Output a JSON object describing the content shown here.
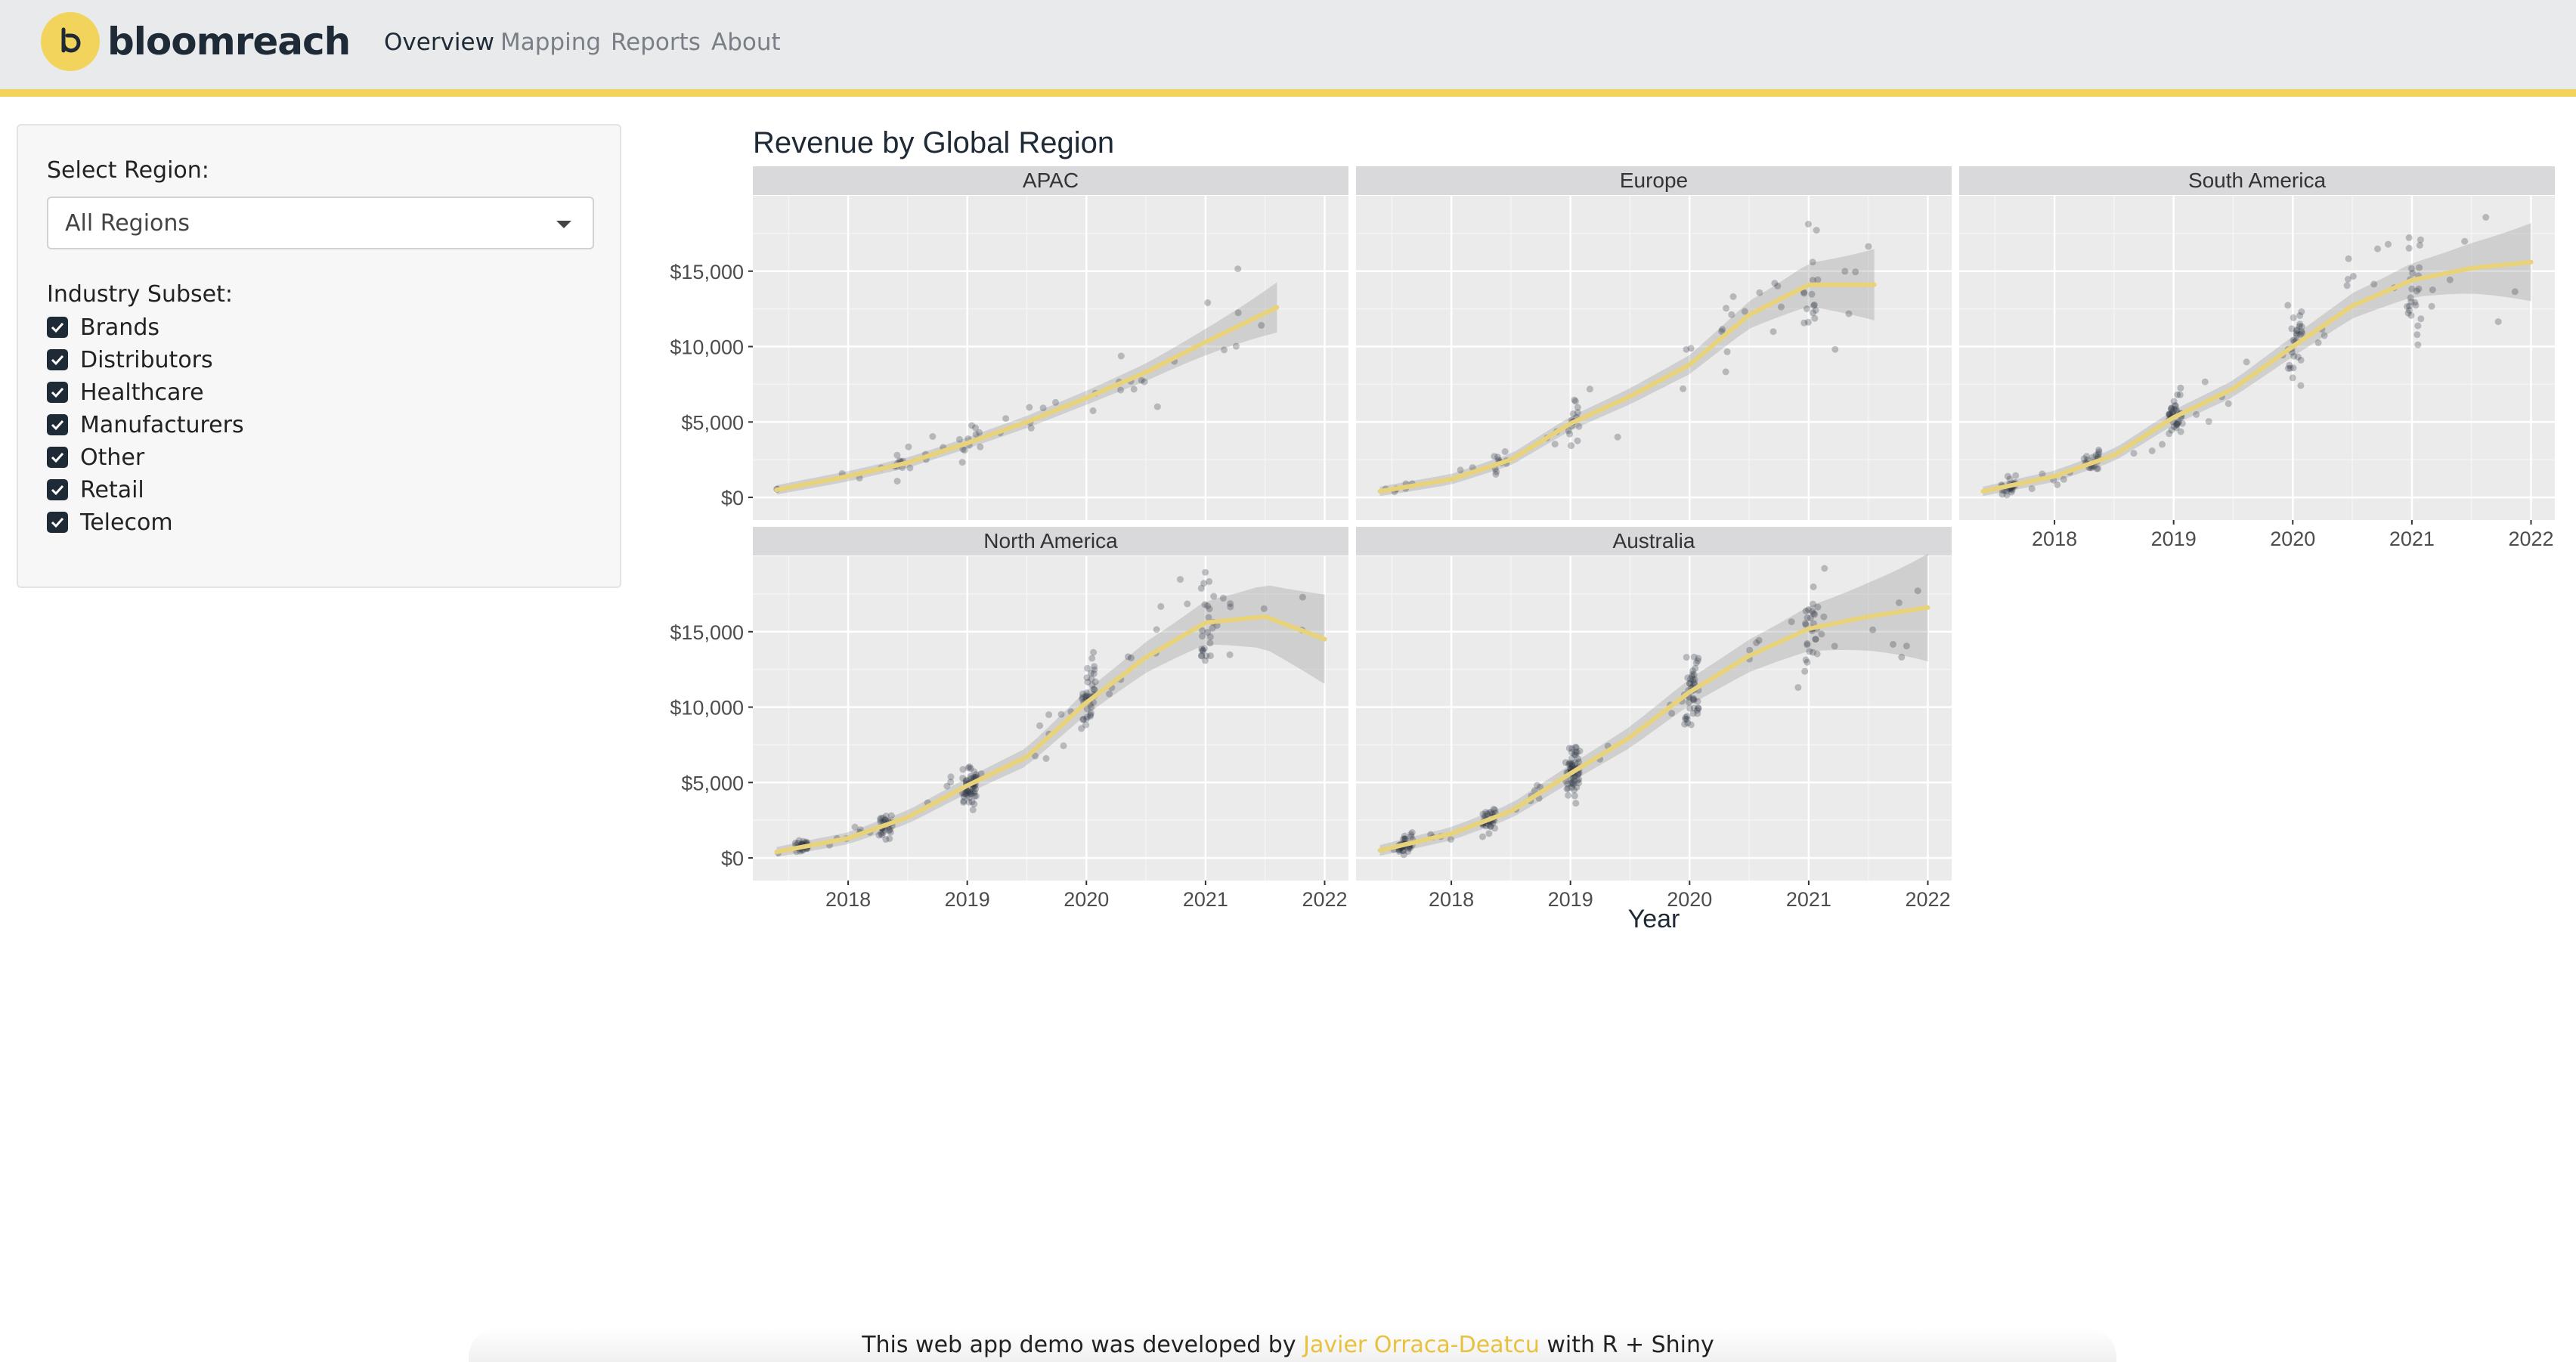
{
  "brand": {
    "name": "bloomreach",
    "accent": "#f2d45c",
    "logo_icon": "bloomreach-b-icon"
  },
  "nav": {
    "items": [
      {
        "label": "Overview",
        "active": true
      },
      {
        "label": "Mapping",
        "active": false
      },
      {
        "label": "Reports",
        "active": false
      },
      {
        "label": "About",
        "active": false
      }
    ]
  },
  "sidebar": {
    "region_label": "Select Region:",
    "region_value": "All Regions",
    "industry_label": "Industry Subset:",
    "industries": [
      {
        "label": "Brands",
        "checked": true
      },
      {
        "label": "Distributors",
        "checked": true
      },
      {
        "label": "Healthcare",
        "checked": true
      },
      {
        "label": "Manufacturers",
        "checked": true
      },
      {
        "label": "Other",
        "checked": true
      },
      {
        "label": "Retail",
        "checked": true
      },
      {
        "label": "Telecom",
        "checked": true
      }
    ]
  },
  "chart_data": {
    "type": "scatter",
    "title": "Revenue by Global Region",
    "xlabel": "Year",
    "ylabel": "",
    "xlim": [
      2017.2,
      2022.2
    ],
    "ylim": [
      -1500,
      20000
    ],
    "xticks": [
      "2018",
      "2019",
      "2020",
      "2021",
      "2022"
    ],
    "yticks": [
      "$0",
      "$5,000",
      "$10,000",
      "$15,000"
    ],
    "grid": true,
    "smooth_color": "#e8d37a",
    "point_color": "#2b3440",
    "panels": [
      {
        "name": "APAC",
        "trend": {
          "x": [
            2017.4,
            2018,
            2018.5,
            2019,
            2019.5,
            2020,
            2020.5,
            2021,
            2021.6
          ],
          "y": [
            500,
            1400,
            2300,
            3600,
            5000,
            6600,
            8300,
            10300,
            12600
          ]
        },
        "band": 0.09,
        "dense_bins": [
          2018.45,
          2019.0
        ],
        "counts": [
          8,
          7
        ]
      },
      {
        "name": "Europe",
        "trend": {
          "x": [
            2017.4,
            2018,
            2018.5,
            2019,
            2019.5,
            2020,
            2020.5,
            2021,
            2021.55
          ],
          "y": [
            400,
            1200,
            2500,
            4900,
            6700,
            8800,
            12100,
            14100,
            14100
          ]
        },
        "band": 0.12,
        "dense_bins": [
          2018.4,
          2019.0,
          2021.0
        ],
        "counts": [
          10,
          14,
          12
        ]
      },
      {
        "name": "South America",
        "trend": {
          "x": [
            2017.4,
            2018,
            2018.5,
            2019,
            2019.5,
            2020,
            2020.5,
            2021,
            2021.5,
            2022
          ],
          "y": [
            400,
            1400,
            2800,
            5300,
            7200,
            10000,
            12700,
            14400,
            15200,
            15600
          ]
        },
        "band": 0.12,
        "dense_bins": [
          2017.6,
          2018.3,
          2019.0,
          2020.0,
          2021.0
        ],
        "counts": [
          25,
          20,
          35,
          30,
          25
        ]
      },
      {
        "name": "North America",
        "trend": {
          "x": [
            2017.4,
            2018,
            2018.5,
            2019,
            2019.5,
            2020,
            2020.5,
            2021,
            2021.5,
            2022
          ],
          "y": [
            400,
            1300,
            2700,
            4800,
            6700,
            10300,
            13300,
            15600,
            16000,
            14500
          ]
        },
        "band": 0.15,
        "dense_bins": [
          2017.6,
          2018.3,
          2019.0,
          2020.0,
          2021.0
        ],
        "counts": [
          30,
          30,
          55,
          40,
          25
        ]
      },
      {
        "name": "Australia",
        "trend": {
          "x": [
            2017.4,
            2018,
            2018.5,
            2019,
            2019.5,
            2020,
            2020.5,
            2021,
            2021.5,
            2022
          ],
          "y": [
            500,
            1600,
            3100,
            5600,
            8000,
            11000,
            13400,
            15200,
            16000,
            16600
          ]
        },
        "band": 0.16,
        "dense_bins": [
          2017.6,
          2018.3,
          2019.0,
          2020.0,
          2021.0
        ],
        "counts": [
          35,
          35,
          60,
          45,
          25
        ]
      }
    ]
  },
  "footer": {
    "prefix": "This web app demo was developed by ",
    "author": "Javier Orraca-Deatcu",
    "suffix": " with R + Shiny"
  }
}
